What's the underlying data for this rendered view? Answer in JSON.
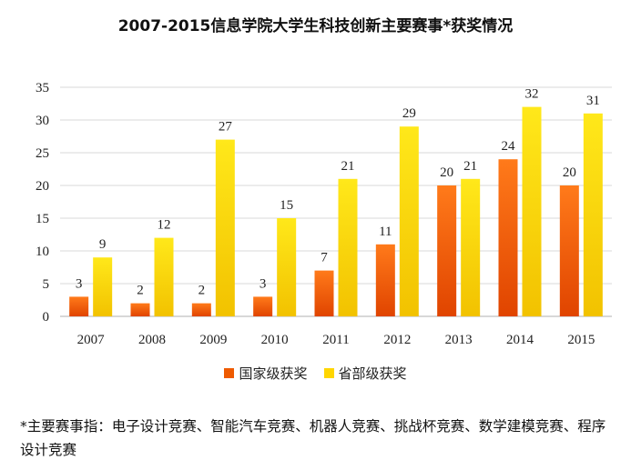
{
  "chart_data": {
    "type": "bar",
    "title": "2007-2015信息学院大学生科技创新主要赛事*获奖情况",
    "categories": [
      "2007",
      "2008",
      "2009",
      "2010",
      "2011",
      "2012",
      "2013",
      "2014",
      "2015"
    ],
    "series": [
      {
        "name": "国家级获奖",
        "color": "#ee5a00",
        "values": [
          3,
          2,
          2,
          3,
          7,
          11,
          20,
          24,
          20
        ]
      },
      {
        "name": "省部级获奖",
        "color": "#ffd600",
        "values": [
          9,
          12,
          27,
          15,
          21,
          29,
          21,
          32,
          31
        ]
      }
    ],
    "yticks": [
      0,
      5,
      10,
      15,
      20,
      25,
      30,
      35
    ],
    "ylim": [
      0,
      35
    ],
    "grid": true,
    "legend_position": "bottom"
  },
  "note": "*主要赛事指：电子设计竞赛、智能汽车竞赛、机器人竞赛、挑战杯竞赛、数学建模竞赛、程序设计竞赛"
}
